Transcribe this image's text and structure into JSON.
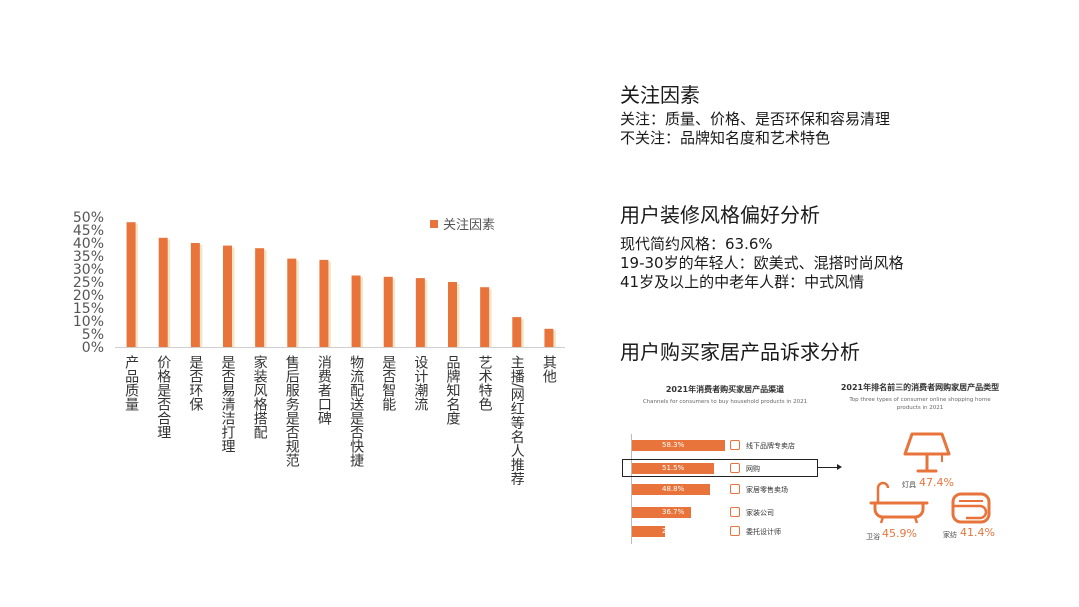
{
  "chart_data": {
    "type": "bar",
    "categories": [
      "产品质量",
      "价格是否合理",
      "是否环保",
      "是否易清洁打理",
      "家装风格搭配",
      "售后服务是否规范",
      "消费者口碑",
      "物流配送是否快捷",
      "是否智能",
      "设计潮流",
      "品牌知名度",
      "艺术特色",
      "主播/网红等名人推荐",
      "其他"
    ],
    "series": [
      {
        "name": "关注因素",
        "values": [
          48,
          42,
          40,
          39,
          38,
          34,
          33.5,
          27.5,
          27,
          26.5,
          25,
          23,
          11.5,
          7
        ]
      }
    ],
    "yticks": [
      "50%",
      "45%",
      "40%",
      "35%",
      "30%",
      "25%",
      "20%",
      "15%",
      "10%",
      "5%",
      "0%"
    ],
    "ylim": [
      0,
      50
    ],
    "legend_position": "top-right",
    "colors": {
      "bar": "#e8743b"
    }
  },
  "sections": {
    "focus": {
      "title": "关注因素",
      "lines": [
        "关注：质量、价格、是否环保和容易清理",
        "不关注：品牌知名度和艺术特色"
      ]
    },
    "style": {
      "title": "用户装修风格偏好分析",
      "lines": [
        "现代简约风格：63.6%",
        "19-30岁的年轻人：欧美式、混搭时尚风格",
        "41岁及以上的中老年人群：中式风情"
      ]
    },
    "demand": {
      "title": "用户购买家居产品诉求分析"
    }
  },
  "infographic": {
    "channels": {
      "title": "2021年消费者购买家居产品渠道",
      "subtitle": "Channels for consumers to buy household products in 2021",
      "items": [
        {
          "value": "58.3%",
          "label": "线下品牌专卖店",
          "fraction": 0.583,
          "icon": "store-icon"
        },
        {
          "value": "51.5%",
          "label": "网购",
          "fraction": 0.515,
          "icon": "monitor-icon"
        },
        {
          "value": "48.8%",
          "label": "家居零售卖场",
          "fraction": 0.488,
          "icon": "mall-icon"
        },
        {
          "value": "36.7%",
          "label": "家装公司",
          "fraction": 0.367,
          "icon": "building-icon"
        },
        {
          "value": "20.6%",
          "label": "委托设计师",
          "fraction": 0.206,
          "icon": "designer-icon"
        }
      ]
    },
    "product_types": {
      "title": "2021年排名前三的消费者网购家居产品类型",
      "subtitle": "Top three types of consumer online shopping home products in 2021",
      "items": [
        {
          "label": "灯具",
          "value": "47.4%",
          "icon": "lamp-icon"
        },
        {
          "label": "卫浴",
          "value": "45.9%",
          "icon": "bathtub-icon"
        },
        {
          "label": "家纺",
          "value": "41.4%",
          "icon": "towel-icon"
        }
      ]
    }
  }
}
